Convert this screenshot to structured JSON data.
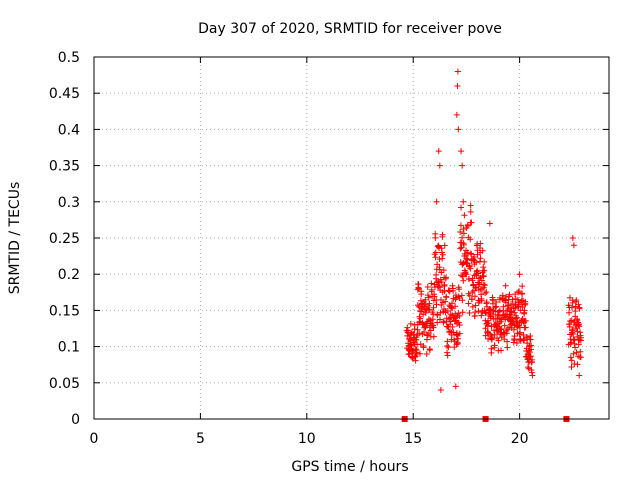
{
  "chart_data": {
    "type": "scatter",
    "title": "Day 307 of 2020, SRMTID for receiver pove",
    "xlabel": "GPS time / hours",
    "ylabel": "SRMTID / TECUs",
    "xlim": [
      0,
      24.2
    ],
    "ylim": [
      0,
      0.5
    ],
    "grid": true,
    "x_ticks": [
      0,
      5,
      10,
      15,
      20
    ],
    "y_ticks": [
      0,
      0.05,
      0.1,
      0.15,
      0.2,
      0.25,
      0.3,
      0.35,
      0.4,
      0.45,
      0.5
    ],
    "x_tick_labels": [
      "0",
      "5",
      "10",
      "15",
      "20"
    ],
    "y_tick_labels": [
      "0",
      "0.05",
      "0.1",
      "0.15",
      "0.2",
      "0.25",
      "0.3",
      "0.35",
      "0.4",
      "0.45",
      "0.5"
    ],
    "marker_color": "#ff0000",
    "series": [
      {
        "name": "SRMTID",
        "marker": "plus",
        "segments": [
          {
            "t0": 14.7,
            "t1": 15.2,
            "base": 0.105,
            "amp": 0.025
          },
          {
            "t0": 15.2,
            "t1": 16.0,
            "base": 0.14,
            "amp": 0.04
          },
          {
            "t0": 16.0,
            "t1": 16.5,
            "base": 0.2,
            "amp": 0.06
          },
          {
            "t0": 16.5,
            "t1": 17.2,
            "base": 0.14,
            "amp": 0.045
          },
          {
            "t0": 17.2,
            "t1": 17.8,
            "base": 0.22,
            "amp": 0.06
          },
          {
            "t0": 17.8,
            "t1": 18.4,
            "base": 0.19,
            "amp": 0.045
          },
          {
            "t0": 18.4,
            "t1": 19.3,
            "base": 0.135,
            "amp": 0.035
          },
          {
            "t0": 19.3,
            "t1": 20.3,
            "base": 0.14,
            "amp": 0.035
          },
          {
            "t0": 20.3,
            "t1": 20.6,
            "base": 0.09,
            "amp": 0.02
          },
          {
            "t0": 22.3,
            "t1": 22.9,
            "base": 0.12,
            "amp": 0.04
          }
        ],
        "peaks": [
          {
            "x": 16.2,
            "y": 0.37
          },
          {
            "x": 16.25,
            "y": 0.35
          },
          {
            "x": 16.1,
            "y": 0.3
          },
          {
            "x": 17.1,
            "y": 0.48
          },
          {
            "x": 17.08,
            "y": 0.46
          },
          {
            "x": 17.05,
            "y": 0.42
          },
          {
            "x": 17.12,
            "y": 0.4
          },
          {
            "x": 17.25,
            "y": 0.37
          },
          {
            "x": 17.3,
            "y": 0.35
          },
          {
            "x": 17.35,
            "y": 0.3
          },
          {
            "x": 18.6,
            "y": 0.27
          },
          {
            "x": 20.0,
            "y": 0.2
          },
          {
            "x": 22.5,
            "y": 0.25
          },
          {
            "x": 22.55,
            "y": 0.24
          },
          {
            "x": 16.3,
            "y": 0.04
          },
          {
            "x": 17.0,
            "y": 0.045
          },
          {
            "x": 20.6,
            "y": 0.06
          },
          {
            "x": 22.8,
            "y": 0.06
          }
        ]
      },
      {
        "name": "zero markers",
        "marker": "square",
        "points": [
          {
            "x": 14.6,
            "y": 0
          },
          {
            "x": 18.4,
            "y": 0
          },
          {
            "x": 22.2,
            "y": 0
          }
        ]
      }
    ]
  }
}
